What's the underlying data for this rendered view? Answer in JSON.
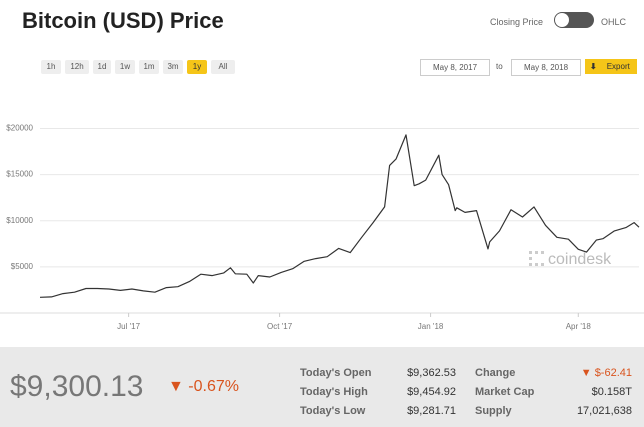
{
  "title": "Bitcoin (USD) Price",
  "toggle": {
    "left": "Closing Price",
    "right": "OHLC"
  },
  "buttons": [
    {
      "label": "1h"
    },
    {
      "label": "12h"
    },
    {
      "label": "1d"
    },
    {
      "label": "1w"
    },
    {
      "label": "1m"
    },
    {
      "label": "3m"
    },
    {
      "label": "1y",
      "active": true
    },
    {
      "label": "All"
    }
  ],
  "date_from": "May 8, 2017",
  "date_sep": "to",
  "date_to": "May 8, 2018",
  "export": "Export",
  "watermark": "coindesk",
  "price": "$9,300.13",
  "price_change": "-0.67%",
  "stats": [
    {
      "label": "Today's Open",
      "value": "$9,362.53",
      "label2": "Change",
      "value2": "$-62.41"
    },
    {
      "label": "Today's High",
      "value": "$9,454.92",
      "label2": "Market Cap",
      "value2": "$0.158T"
    },
    {
      "label": "Today's Low",
      "value": "$9,281.71",
      "label2": "Supply",
      "value2": "17,021,638"
    }
  ],
  "chart_data": {
    "type": "line",
    "color": "#333333",
    "grid": true,
    "xlim": [
      "2017-05-08",
      "2018-05-08"
    ],
    "xticks": [
      {
        "value": "2017-07-01",
        "label": "Jul '17"
      },
      {
        "value": "2017-10-01",
        "label": "Oct '17"
      },
      {
        "value": "2018-01-01",
        "label": "Jan '18"
      },
      {
        "value": "2018-04-01",
        "label": "Apr '18"
      }
    ],
    "ylim": [
      0,
      22000
    ],
    "yticks": [
      {
        "value": 5000,
        "label": "$5000"
      },
      {
        "value": 10000,
        "label": "$10000"
      },
      {
        "value": 15000,
        "label": "$15000"
      },
      {
        "value": 20000,
        "label": "$20000"
      }
    ],
    "x": [
      "2017-05-08",
      "2017-05-15",
      "2017-05-22",
      "2017-05-29",
      "2017-06-05",
      "2017-06-12",
      "2017-06-19",
      "2017-06-26",
      "2017-07-03",
      "2017-07-10",
      "2017-07-17",
      "2017-07-24",
      "2017-07-31",
      "2017-08-07",
      "2017-08-14",
      "2017-08-21",
      "2017-08-28",
      "2017-09-01",
      "2017-09-04",
      "2017-09-11",
      "2017-09-15",
      "2017-09-18",
      "2017-09-25",
      "2017-10-02",
      "2017-10-09",
      "2017-10-16",
      "2017-10-23",
      "2017-10-30",
      "2017-11-06",
      "2017-11-13",
      "2017-11-20",
      "2017-11-27",
      "2017-12-04",
      "2017-12-07",
      "2017-12-11",
      "2017-12-17",
      "2017-12-22",
      "2017-12-25",
      "2017-12-29",
      "2018-01-06",
      "2018-01-08",
      "2018-01-12",
      "2018-01-16",
      "2018-01-17",
      "2018-01-22",
      "2018-01-29",
      "2018-02-05",
      "2018-02-06",
      "2018-02-12",
      "2018-02-19",
      "2018-02-26",
      "2018-03-05",
      "2018-03-12",
      "2018-03-19",
      "2018-03-26",
      "2018-04-01",
      "2018-04-06",
      "2018-04-12",
      "2018-04-16",
      "2018-04-23",
      "2018-04-30",
      "2018-05-05",
      "2018-05-08"
    ],
    "values": [
      1700,
      1750,
      2100,
      2250,
      2650,
      2650,
      2600,
      2450,
      2600,
      2400,
      2250,
      2750,
      2850,
      3400,
      4200,
      4050,
      4350,
      4900,
      4250,
      4200,
      3250,
      4050,
      3900,
      4400,
      4800,
      5600,
      5900,
      6100,
      7000,
      6550,
      8200,
      9800,
      11500,
      16000,
      16700,
      19300,
      13800,
      14000,
      14400,
      17100,
      15000,
      13900,
      11100,
      11400,
      10900,
      11100,
      6950,
      7700,
      8900,
      11200,
      10400,
      11500,
      9500,
      8200,
      8000,
      6900,
      6600,
      7900,
      8050,
      8900,
      9250,
      9800,
      9300
    ]
  }
}
